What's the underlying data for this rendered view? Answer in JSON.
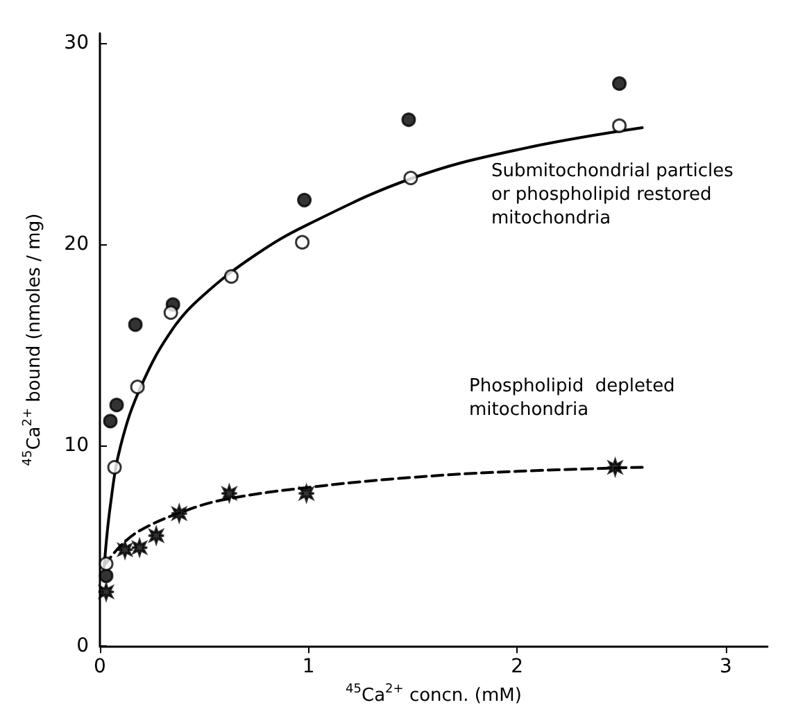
{
  "chart_data": {
    "type": "scatter",
    "xlabel": "$^{45}$Ca$^{2+}$ concn. (mM)",
    "ylabel": "$^{45}$Ca$^{2+}$ bound (nmoles / mg)",
    "xlim": [
      0,
      3.2
    ],
    "xticks": [
      0,
      1,
      2,
      3
    ],
    "ylim": [
      0,
      30.5
    ],
    "yticks": [
      0,
      10,
      20,
      30
    ],
    "grid": false,
    "series": [
      {
        "marker": "circle",
        "color": "#000000",
        "x": [
          0.03,
          0.05,
          0.08,
          0.17,
          0.35,
          0.98,
          1.48,
          2.49
        ],
        "values": [
          3.5,
          11.2,
          12.0,
          16.0,
          17.0,
          22.2,
          26.2,
          28.0
        ]
      },
      {
        "marker": "circle",
        "color": "#ffffff",
        "x": [
          0.03,
          0.07,
          0.18,
          0.34,
          0.63,
          0.97,
          1.49,
          2.49
        ],
        "values": [
          4.1,
          8.9,
          12.9,
          16.6,
          18.4,
          20.1,
          23.3,
          25.9
        ]
      },
      {
        "marker": "star",
        "color": "#000000",
        "x": [
          0.03,
          0.12,
          0.19,
          0.27,
          0.38,
          0.62,
          0.99,
          2.47
        ],
        "values": [
          2.7,
          4.8,
          4.9,
          5.5,
          6.6,
          7.6,
          7.6,
          8.9
        ]
      },
      {
        "type": "line",
        "marker": "none",
        "line_style": "solid",
        "color": "#000000",
        "x": [
          0.02,
          0.05,
          0.1,
          0.2,
          0.35,
          0.5,
          0.75,
          1,
          1.5,
          2,
          2.6
        ],
        "values": [
          3.9,
          7,
          10,
          13,
          15.8,
          17.5,
          19.5,
          21,
          23.3,
          24.7,
          25.8
        ]
      },
      {
        "type": "line",
        "marker": "none",
        "line_style": "dashed",
        "color": "#000000",
        "x": [
          0.02,
          0.1,
          0.2,
          0.4,
          0.6,
          1,
          1.5,
          2,
          2.6
        ],
        "values": [
          4.0,
          5,
          5.8,
          6.7,
          7.3,
          7.9,
          8.4,
          8.7,
          8.9
        ]
      }
    ],
    "annotations": [
      "Submitochondrial particles\nor phospholipid restored\nmitochondria",
      "Phospholipid  depleted\nmitochondria"
    ]
  }
}
